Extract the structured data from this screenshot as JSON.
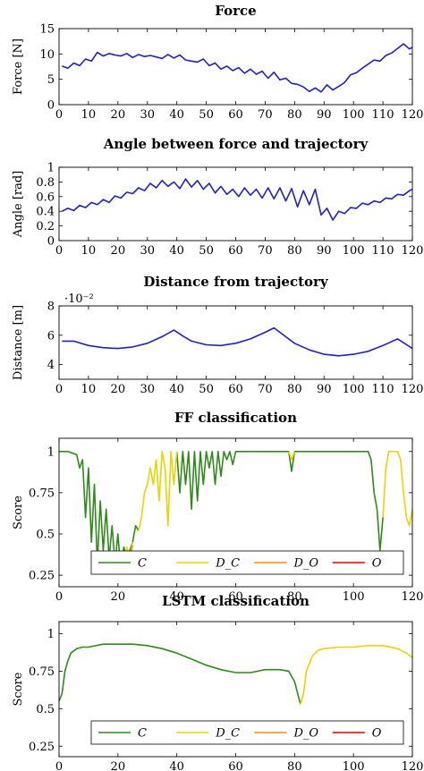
{
  "chart_data": [
    {
      "type": "line",
      "title": "Force",
      "xlabel": "",
      "ylabel": "Force [N]",
      "xlim": [
        0,
        120
      ],
      "ylim": [
        0,
        15
      ],
      "xticks": [
        0,
        10,
        20,
        30,
        40,
        50,
        60,
        70,
        80,
        90,
        100,
        110,
        120
      ],
      "yticks": [
        0,
        5,
        10,
        15
      ],
      "ytick_labels": [
        "0",
        "5",
        "10",
        "15"
      ],
      "grid": false,
      "color": "#1f1fd6",
      "series": [
        {
          "x": [
            1,
            3,
            5,
            7,
            9,
            11,
            13,
            15,
            17,
            19,
            21,
            23,
            25,
            27,
            29,
            31,
            33,
            35,
            37,
            39,
            41,
            43,
            45,
            47,
            49,
            51,
            53,
            55,
            57,
            59,
            61,
            63,
            65,
            67,
            69,
            71,
            73,
            75,
            77,
            79,
            81,
            83,
            85,
            87,
            89,
            91,
            93,
            95,
            97,
            99,
            101,
            103,
            105,
            107,
            109,
            111,
            113,
            115,
            117,
            119,
            120
          ],
          "y": [
            7.6,
            7.2,
            8.2,
            7.7,
            9.0,
            8.6,
            10.3,
            9.6,
            10.1,
            9.8,
            9.6,
            10.1,
            9.3,
            9.9,
            9.5,
            9.7,
            9.4,
            9.1,
            9.9,
            9.2,
            9.8,
            8.8,
            8.6,
            8.4,
            9.0,
            7.7,
            8.2,
            7.0,
            7.6,
            6.7,
            7.3,
            6.2,
            7.0,
            6.0,
            6.6,
            5.2,
            6.4,
            4.9,
            5.2,
            4.2,
            4.0,
            3.5,
            2.6,
            3.3,
            2.5,
            3.9,
            2.9,
            3.6,
            4.4,
            5.9,
            6.3,
            7.2,
            8.0,
            8.8,
            8.6,
            9.7,
            10.2,
            11.1,
            12.0,
            11.0,
            11.3
          ]
        }
      ]
    },
    {
      "type": "line",
      "title": "Angle between force and trajectory",
      "xlabel": "",
      "ylabel": "Angle [rad]",
      "xlim": [
        0,
        120
      ],
      "ylim": [
        0,
        1
      ],
      "xticks": [
        0,
        10,
        20,
        30,
        40,
        50,
        60,
        70,
        80,
        90,
        100,
        110,
        120
      ],
      "yticks": [
        0,
        0.2,
        0.4,
        0.6,
        0.8,
        1
      ],
      "ytick_labels": [
        "0",
        "0.2",
        "0.4",
        "0.6",
        "0.8",
        "1"
      ],
      "grid": false,
      "color": "#1f1fd6",
      "series": [
        {
          "x": [
            1,
            3,
            5,
            7,
            9,
            11,
            13,
            15,
            17,
            19,
            21,
            23,
            25,
            27,
            29,
            31,
            33,
            35,
            37,
            39,
            41,
            43,
            45,
            47,
            49,
            51,
            53,
            55,
            57,
            59,
            61,
            63,
            65,
            67,
            69,
            71,
            73,
            75,
            77,
            79,
            81,
            83,
            85,
            87,
            89,
            91,
            93,
            95,
            97,
            99,
            101,
            103,
            105,
            107,
            109,
            111,
            113,
            115,
            117,
            119,
            120
          ],
          "y": [
            0.4,
            0.44,
            0.41,
            0.48,
            0.45,
            0.52,
            0.49,
            0.56,
            0.52,
            0.61,
            0.58,
            0.66,
            0.64,
            0.72,
            0.68,
            0.78,
            0.72,
            0.82,
            0.74,
            0.8,
            0.71,
            0.84,
            0.73,
            0.82,
            0.7,
            0.78,
            0.65,
            0.74,
            0.63,
            0.7,
            0.6,
            0.72,
            0.62,
            0.7,
            0.58,
            0.72,
            0.57,
            0.72,
            0.54,
            0.71,
            0.46,
            0.68,
            0.49,
            0.7,
            0.35,
            0.44,
            0.28,
            0.4,
            0.37,
            0.45,
            0.44,
            0.51,
            0.49,
            0.54,
            0.52,
            0.58,
            0.57,
            0.63,
            0.62,
            0.68,
            0.7
          ]
        }
      ]
    },
    {
      "type": "line",
      "title": "Distance from trajectory",
      "xlabel": "",
      "ylabel": "Distance [m]",
      "scale_note": "·10⁻²",
      "xlim": [
        0,
        120
      ],
      "ylim": [
        3,
        8
      ],
      "xticks": [
        0,
        10,
        20,
        30,
        40,
        50,
        60,
        70,
        80,
        90,
        100,
        110,
        120
      ],
      "yticks": [
        4,
        6,
        8
      ],
      "ytick_labels": [
        "4",
        "6",
        "8"
      ],
      "grid": false,
      "color": "#1f1fd6",
      "series": [
        {
          "x": [
            1,
            5,
            10,
            15,
            20,
            25,
            30,
            35,
            39,
            42,
            45,
            50,
            55,
            60,
            65,
            70,
            73,
            76,
            80,
            85,
            90,
            95,
            100,
            105,
            110,
            115,
            120
          ],
          "y": [
            5.6,
            5.6,
            5.3,
            5.15,
            5.1,
            5.2,
            5.45,
            5.9,
            6.35,
            5.95,
            5.6,
            5.35,
            5.3,
            5.45,
            5.75,
            6.2,
            6.5,
            6.05,
            5.45,
            5.0,
            4.7,
            4.6,
            4.7,
            4.9,
            5.3,
            5.75,
            5.1
          ]
        }
      ]
    },
    {
      "type": "line",
      "title": "FF classification",
      "xlabel": "",
      "ylabel": "Score",
      "xlim": [
        0,
        120
      ],
      "ylim": [
        0.18,
        1.08
      ],
      "xticks": [
        0,
        20,
        40,
        60,
        80,
        100,
        120
      ],
      "yticks": [
        0.25,
        0.5,
        0.75,
        1
      ],
      "ytick_labels": [
        "0.25",
        "0.5",
        "0.75",
        "1"
      ],
      "grid": false,
      "legend": {
        "placement": "bottom",
        "labels": [
          "C",
          "D_C",
          "D_O",
          "O"
        ],
        "colors": [
          "#2e8b1a",
          "#e6d600",
          "#f28c00",
          "#e00000"
        ]
      },
      "series": [
        {
          "name": "C",
          "color": "#2e8b1a",
          "segments": [
            {
              "x": [
                0,
                3,
                6,
                7,
                8,
                9,
                10,
                11,
                12,
                13,
                14,
                15,
                16,
                17,
                18,
                19,
                20,
                21,
                22,
                23,
                24,
                25,
                26,
                27
              ],
              "y": [
                1.0,
                1.0,
                0.98,
                0.9,
                0.95,
                0.6,
                0.9,
                0.45,
                0.8,
                0.32,
                0.7,
                0.4,
                0.65,
                0.35,
                0.55,
                0.32,
                0.5,
                0.28,
                0.42,
                0.35,
                0.4,
                0.45,
                0.55,
                0.52
              ]
            },
            {
              "x": [
                40,
                41,
                42,
                43,
                44,
                45,
                46,
                47,
                48,
                49,
                50,
                51,
                52,
                53,
                54,
                55,
                56,
                57,
                58,
                59,
                60,
                65,
                70,
                75,
                78,
                79,
                80,
                85,
                90,
                95,
                100,
                105,
                106,
                107,
                108,
                109,
                110
              ],
              "y": [
                1.0,
                0.75,
                1.0,
                0.8,
                1.0,
                0.65,
                1.0,
                0.7,
                1.0,
                0.8,
                1.0,
                0.9,
                1.0,
                0.8,
                1.0,
                0.85,
                1.0,
                0.95,
                1.0,
                0.92,
                1.0,
                1.0,
                1.0,
                1.0,
                1.0,
                0.88,
                1.0,
                1.0,
                1.0,
                1.0,
                1.0,
                1.0,
                0.95,
                0.75,
                0.65,
                0.4,
                0.6
              ]
            }
          ]
        },
        {
          "name": "D_C",
          "color": "#e6d600",
          "segments": [
            {
              "x": [
                27,
                28,
                29,
                30,
                31,
                32,
                33,
                34,
                35,
                36,
                37,
                38,
                39,
                40
              ],
              "y": [
                0.52,
                0.6,
                0.75,
                0.8,
                0.9,
                0.8,
                0.95,
                0.7,
                1.0,
                0.9,
                0.55,
                1.0,
                0.8,
                1.0
              ]
            },
            {
              "x": [
                22,
                23,
                24,
                25
              ],
              "y": [
                0.3,
                0.42,
                0.35,
                0.45
              ]
            },
            {
              "x": [
                78,
                79,
                80
              ],
              "y": [
                1.0,
                0.95,
                1.0
              ]
            },
            {
              "x": [
                110,
                111,
                112,
                113,
                114,
                115,
                116,
                117,
                118,
                119,
                120
              ],
              "y": [
                0.6,
                0.9,
                1.0,
                1.0,
                1.0,
                1.0,
                0.95,
                0.75,
                0.6,
                0.55,
                0.65
              ]
            }
          ]
        },
        {
          "name": "D_O",
          "color": "#f28c00",
          "segments": [
            {
              "x": [
                23,
                24,
                25
              ],
              "y": [
                0.38,
                0.36,
                0.43
              ]
            }
          ]
        },
        {
          "name": "O",
          "color": "#e00000",
          "segments": []
        }
      ]
    },
    {
      "type": "line",
      "title": "LSTM classification",
      "xlabel": "",
      "ylabel": "Score",
      "xlim": [
        0,
        120
      ],
      "ylim": [
        0.18,
        1.08
      ],
      "xticks": [
        0,
        20,
        40,
        60,
        80,
        100,
        120
      ],
      "yticks": [
        0.25,
        0.5,
        0.75,
        1
      ],
      "ytick_labels": [
        "0.25",
        "0.5",
        "0.75",
        "1"
      ],
      "grid": false,
      "legend": {
        "placement": "bottom",
        "labels": [
          "C",
          "D_C",
          "D_O",
          "O"
        ],
        "colors": [
          "#2e8b1a",
          "#e6d600",
          "#f28c00",
          "#e00000"
        ]
      },
      "series": [
        {
          "name": "C",
          "color": "#2e8b1a",
          "segments": [
            {
              "x": [
                0,
                1,
                2,
                3,
                4,
                6,
                8,
                10,
                15,
                20,
                25,
                30,
                35,
                40,
                45,
                50,
                55,
                60,
                65,
                70,
                75,
                78,
                80,
                82
              ],
              "y": [
                0.55,
                0.6,
                0.75,
                0.82,
                0.87,
                0.9,
                0.91,
                0.91,
                0.93,
                0.93,
                0.93,
                0.92,
                0.9,
                0.87,
                0.83,
                0.79,
                0.76,
                0.74,
                0.74,
                0.76,
                0.76,
                0.75,
                0.68,
                0.53
              ]
            }
          ]
        },
        {
          "name": "D_C",
          "color": "#e6d600",
          "segments": [
            {
              "x": [
                82,
                83,
                84,
                86,
                88,
                90,
                95,
                100,
                105,
                110,
                115,
                118,
                120
              ],
              "y": [
                0.53,
                0.6,
                0.75,
                0.85,
                0.89,
                0.9,
                0.91,
                0.91,
                0.92,
                0.92,
                0.9,
                0.87,
                0.84
              ]
            }
          ]
        },
        {
          "name": "D_O",
          "color": "#f28c00",
          "segments": []
        },
        {
          "name": "O",
          "color": "#e00000",
          "segments": []
        }
      ]
    }
  ]
}
